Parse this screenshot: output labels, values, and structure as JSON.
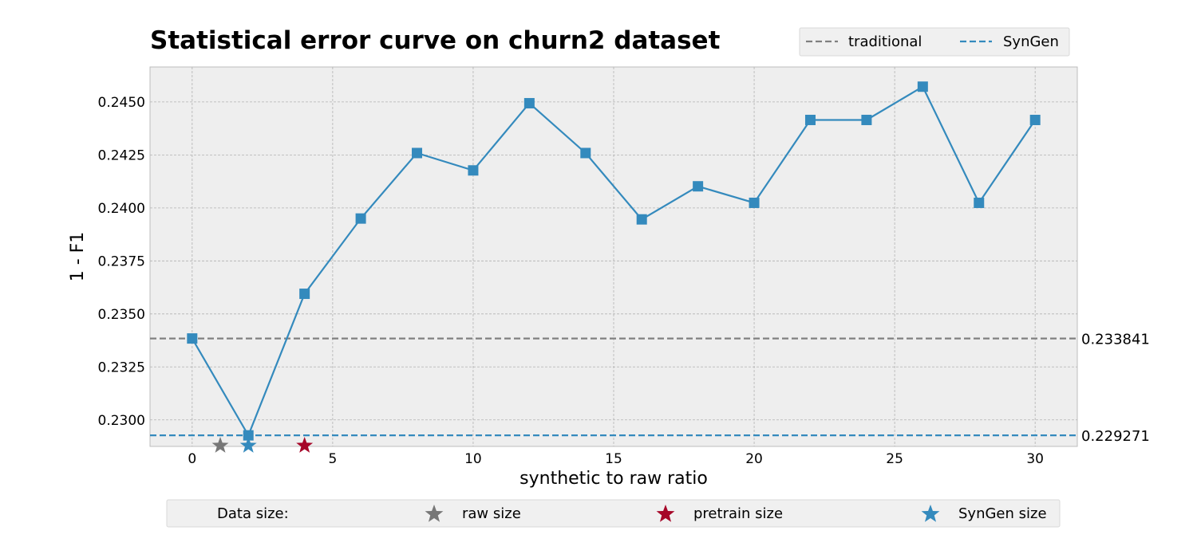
{
  "chart_data": {
    "type": "line",
    "title": "Statistical error curve on churn2 dataset",
    "xlabel": "synthetic to raw ratio",
    "ylabel": "1 - F1",
    "xlim": [
      -1.5,
      31.5
    ],
    "ylim": [
      0.22875,
      0.24665
    ],
    "xticks": [
      0,
      5,
      10,
      15,
      20,
      25,
      30
    ],
    "yticks": [
      0.23,
      0.2325,
      0.235,
      0.2375,
      0.24,
      0.2425,
      0.245
    ],
    "grid": true,
    "series": [
      {
        "name": "SynGen",
        "color": "#348ABD",
        "marker": "square",
        "x": [
          0,
          2,
          4,
          6,
          8,
          10,
          12,
          14,
          16,
          18,
          20,
          22,
          24,
          26,
          28,
          30
        ],
        "y": [
          0.233841,
          0.229271,
          0.23595,
          0.2395,
          0.24259,
          0.24177,
          0.24494,
          0.24259,
          0.23946,
          0.24102,
          0.24024,
          0.24415,
          0.24415,
          0.24572,
          0.24024,
          0.24415
        ]
      }
    ],
    "reference_lines": [
      {
        "name": "traditional",
        "value": 0.233841,
        "label": "0.233841",
        "color": "#808080",
        "style": "dashed"
      },
      {
        "name": "SynGen",
        "value": 0.229271,
        "label": "0.229271",
        "color": "#348ABD",
        "style": "dashed"
      }
    ],
    "size_markers": [
      {
        "name": "raw size",
        "x": 1,
        "color": "#777777"
      },
      {
        "name": "SynGen size",
        "x": 2,
        "color": "#348ABD"
      },
      {
        "name": "pretrain size",
        "x": 4,
        "color": "#A60628"
      }
    ],
    "legend_top": {
      "placement": "top-right",
      "entries": [
        {
          "label": "traditional",
          "color": "#808080"
        },
        {
          "label": "SynGen",
          "color": "#348ABD"
        }
      ]
    },
    "legend_bottom": {
      "placement": "bottom",
      "heading": "Data size:",
      "entries": [
        {
          "label": "raw size",
          "color": "#777777"
        },
        {
          "label": "pretrain size",
          "color": "#A60628"
        },
        {
          "label": "SynGen size",
          "color": "#348ABD"
        }
      ]
    }
  }
}
